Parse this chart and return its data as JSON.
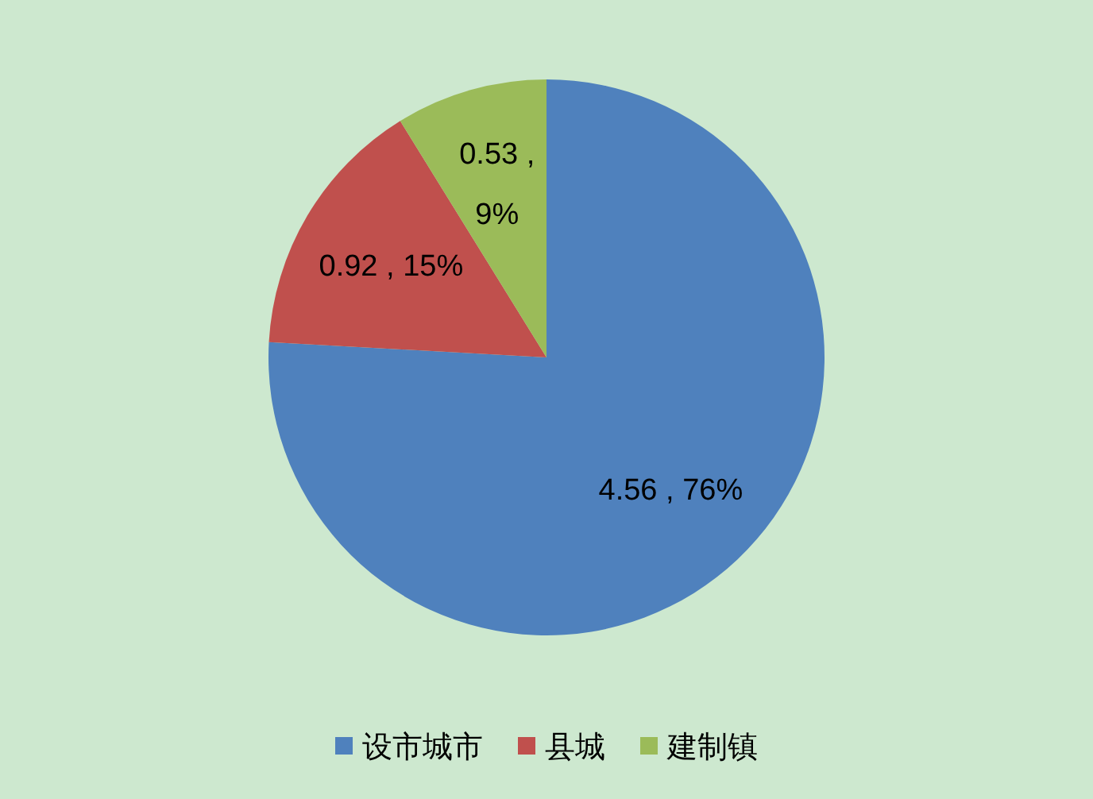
{
  "chart_data": {
    "type": "pie",
    "categories": [
      "设市城市",
      "县城",
      "建制镇"
    ],
    "values": [
      4.56,
      0.92,
      0.53
    ],
    "colors": [
      "#4f81bd",
      "#c0504d",
      "#9bbb59"
    ],
    "value_labels": [
      "4.56 , 76%",
      "0.92 , 15%",
      "0.53 , 9%"
    ],
    "legend": "bottom"
  }
}
